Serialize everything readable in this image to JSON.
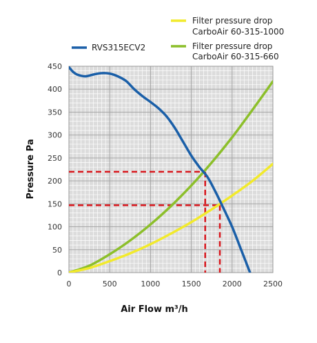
{
  "chart_data": {
    "type": "line",
    "xlabel": "Air Flow m³/h",
    "ylabel": "Pressure Pa",
    "xlim": [
      0,
      2500
    ],
    "ylim": [
      0,
      450
    ],
    "x_ticks": [
      0,
      500,
      1000,
      1500,
      2000,
      2500
    ],
    "y_ticks": [
      0,
      50,
      100,
      150,
      200,
      250,
      300,
      350,
      400,
      450
    ],
    "grid": true,
    "legend_position": "top",
    "series": [
      {
        "name": "RVS315ECV2",
        "color": "#1a5fa8",
        "points": [
          [
            0,
            448
          ],
          [
            50,
            438
          ],
          [
            100,
            432
          ],
          [
            200,
            428
          ],
          [
            300,
            432
          ],
          [
            400,
            435
          ],
          [
            500,
            434
          ],
          [
            600,
            428
          ],
          [
            700,
            418
          ],
          [
            800,
            400
          ],
          [
            900,
            385
          ],
          [
            1000,
            372
          ],
          [
            1100,
            358
          ],
          [
            1200,
            340
          ],
          [
            1300,
            315
          ],
          [
            1400,
            285
          ],
          [
            1500,
            255
          ],
          [
            1600,
            230
          ],
          [
            1700,
            208
          ],
          [
            1800,
            175
          ],
          [
            1900,
            138
          ],
          [
            2000,
            100
          ],
          [
            2100,
            55
          ],
          [
            2220,
            0
          ]
        ]
      },
      {
        "name": "Filter pressure drop CarboAir 60-315-1000",
        "color": "#f2ea2b",
        "points": [
          [
            0,
            0
          ],
          [
            250,
            10
          ],
          [
            500,
            25
          ],
          [
            750,
            42
          ],
          [
            1000,
            62
          ],
          [
            1250,
            85
          ],
          [
            1500,
            110
          ],
          [
            1750,
            138
          ],
          [
            2000,
            168
          ],
          [
            2250,
            200
          ],
          [
            2500,
            237
          ]
        ]
      },
      {
        "name": "Filter pressure drop CarboAir 60-315-660",
        "color": "#8cbf2a",
        "points": [
          [
            0,
            0
          ],
          [
            250,
            15
          ],
          [
            500,
            40
          ],
          [
            750,
            70
          ],
          [
            1000,
            105
          ],
          [
            1250,
            145
          ],
          [
            1500,
            190
          ],
          [
            1750,
            240
          ],
          [
            2000,
            295
          ],
          [
            2250,
            355
          ],
          [
            2500,
            417
          ]
        ]
      }
    ],
    "reference_lines": [
      {
        "y": 220,
        "x": 1670,
        "color": "#d9161c"
      },
      {
        "y": 147,
        "x": 1850,
        "color": "#d9161c"
      }
    ]
  },
  "legend": {
    "rvs": "RVS315ECV2",
    "f1000_line1": "Filter pressure drop",
    "f1000_line2": "CarboAir 60-315-1000",
    "f660_line1": "Filter pressure drop",
    "f660_line2": "CarboAir 60-315-660"
  }
}
